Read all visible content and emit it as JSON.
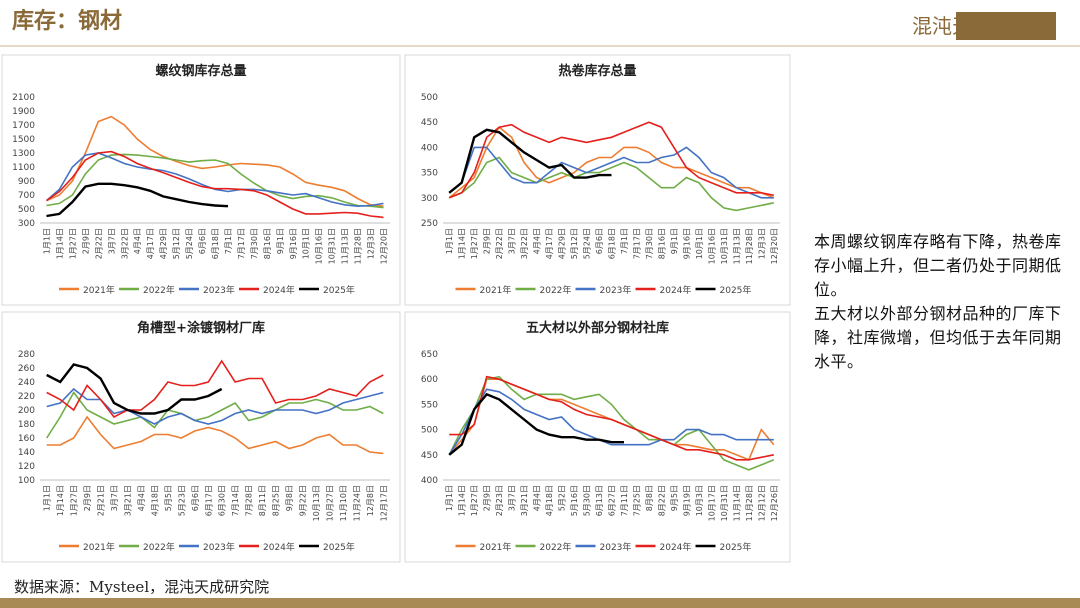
{
  "header": {
    "title": "库存：钢材",
    "logo": "混沌天成研究院"
  },
  "chart_data": [
    {
      "type": "line",
      "title": "螺纹钢库存总量",
      "categories": [
        "1月1日",
        "1月14日",
        "1月27日",
        "2月9日",
        "2月22日",
        "3月7日",
        "3月22日",
        "4月4日",
        "4月17日",
        "4月29日",
        "5月12日",
        "5月24日",
        "6月6日",
        "6月18日",
        "7月1日",
        "7月17日",
        "7月30日",
        "8月16日",
        "9月1日",
        "9月16日",
        "10月1日",
        "10月16日",
        "10月31日",
        "11月13日",
        "11月28日",
        "12月3日",
        "12月20日"
      ],
      "ylim": [
        300,
        2100
      ],
      "yticks": [
        300,
        500,
        700,
        900,
        1100,
        1300,
        1500,
        1700,
        1900,
        2100
      ],
      "grid": false,
      "series": [
        {
          "name": "2021年",
          "color": "#ed7d31",
          "values": [
            620,
            700,
            900,
            1300,
            1750,
            1820,
            1700,
            1500,
            1350,
            1250,
            1180,
            1120,
            1080,
            1100,
            1130,
            1150,
            1140,
            1130,
            1100,
            1000,
            880,
            840,
            810,
            760,
            650,
            560,
            540
          ]
        },
        {
          "name": "2022年",
          "color": "#70ad47",
          "values": [
            550,
            580,
            700,
            1000,
            1200,
            1270,
            1280,
            1270,
            1250,
            1230,
            1200,
            1170,
            1190,
            1200,
            1150,
            1000,
            870,
            760,
            690,
            650,
            680,
            690,
            660,
            600,
            550,
            540,
            520
          ]
        },
        {
          "name": "2023年",
          "color": "#4472c4",
          "values": [
            620,
            780,
            1100,
            1270,
            1300,
            1230,
            1150,
            1100,
            1070,
            1050,
            1000,
            930,
            850,
            780,
            750,
            780,
            780,
            760,
            730,
            700,
            720,
            660,
            600,
            560,
            540,
            550,
            580
          ]
        },
        {
          "name": "2024年",
          "color": "#e3201b",
          "values": [
            620,
            750,
            950,
            1200,
            1300,
            1320,
            1250,
            1150,
            1080,
            1020,
            950,
            880,
            820,
            790,
            790,
            780,
            760,
            700,
            600,
            500,
            430,
            430,
            440,
            450,
            440,
            400,
            380
          ]
        },
        {
          "name": "2025年",
          "color": "#000000",
          "values": [
            400,
            430,
            600,
            820,
            860,
            860,
            840,
            810,
            760,
            680,
            640,
            600,
            570,
            550,
            540,
            null,
            null,
            null,
            null,
            null,
            null,
            null,
            null,
            null,
            null,
            null,
            null
          ]
        }
      ]
    },
    {
      "type": "line",
      "title": "热卷库存总量",
      "categories": [
        "1月1日",
        "1月14日",
        "1月27日",
        "2月9日",
        "2月22日",
        "3月7日",
        "3月22日",
        "4月4日",
        "4月17日",
        "4月29日",
        "5月12日",
        "5月24日",
        "6月6日",
        "6月18日",
        "7月1日",
        "7月17日",
        "7月30日",
        "8月16日",
        "9月1日",
        "9月16日",
        "10月1日",
        "10月16日",
        "10月31日",
        "11月13日",
        "11月28日",
        "12月3日",
        "12月20日"
      ],
      "ylim": [
        250,
        500
      ],
      "yticks": [
        250,
        300,
        350,
        400,
        450,
        500
      ],
      "grid": false,
      "series": [
        {
          "name": "2021年",
          "color": "#ed7d31",
          "values": [
            300,
            320,
            340,
            400,
            440,
            420,
            370,
            340,
            330,
            340,
            350,
            370,
            380,
            380,
            400,
            400,
            390,
            370,
            360,
            360,
            350,
            340,
            330,
            320,
            320,
            310,
            300
          ]
        },
        {
          "name": "2022年",
          "color": "#70ad47",
          "values": [
            300,
            310,
            330,
            370,
            380,
            350,
            340,
            330,
            340,
            350,
            340,
            350,
            350,
            360,
            370,
            360,
            340,
            320,
            320,
            340,
            330,
            300,
            280,
            275,
            280,
            285,
            290
          ]
        },
        {
          "name": "2023年",
          "color": "#4472c4",
          "values": [
            310,
            330,
            400,
            400,
            370,
            340,
            330,
            330,
            350,
            370,
            360,
            350,
            360,
            370,
            380,
            370,
            370,
            380,
            385,
            400,
            380,
            350,
            340,
            320,
            310,
            300,
            300
          ]
        },
        {
          "name": "2024年",
          "color": "#e3201b",
          "values": [
            300,
            310,
            350,
            420,
            440,
            445,
            430,
            420,
            410,
            420,
            415,
            410,
            415,
            420,
            430,
            440,
            450,
            440,
            400,
            360,
            340,
            330,
            320,
            310,
            310,
            310,
            305
          ]
        },
        {
          "name": "2025年",
          "color": "#000000",
          "values": [
            310,
            330,
            420,
            435,
            430,
            410,
            390,
            375,
            360,
            365,
            340,
            340,
            345,
            345,
            null,
            null,
            null,
            null,
            null,
            null,
            null,
            null,
            null,
            null,
            null,
            null,
            null
          ]
        }
      ]
    },
    {
      "type": "line",
      "title": "角槽型+涂镀钢材厂库",
      "categories": [
        "1月1日",
        "1月14日",
        "1月27日",
        "2月9日",
        "2月21日",
        "3月7日",
        "3月21日",
        "4月4日",
        "4月18日",
        "5月5日",
        "5月23日",
        "6月6日",
        "6月17日",
        "6月30日",
        "7月14日",
        "7月28日",
        "8月11日",
        "8月25日",
        "9月8日",
        "9月22日",
        "10月13日",
        "10月27日",
        "11月10日",
        "11月24日",
        "12月8日",
        "12月17日"
      ],
      "ylim": [
        100,
        280
      ],
      "yticks": [
        100,
        120,
        140,
        160,
        180,
        200,
        220,
        240,
        260,
        280
      ],
      "grid": false,
      "series": [
        {
          "name": "2021年",
          "color": "#ed7d31",
          "values": [
            150,
            150,
            160,
            190,
            165,
            145,
            150,
            155,
            165,
            165,
            160,
            170,
            175,
            170,
            160,
            145,
            150,
            155,
            145,
            150,
            160,
            165,
            150,
            150,
            140,
            138
          ]
        },
        {
          "name": "2022年",
          "color": "#70ad47",
          "values": [
            160,
            190,
            225,
            200,
            190,
            180,
            185,
            190,
            175,
            200,
            195,
            185,
            190,
            200,
            210,
            185,
            190,
            200,
            210,
            210,
            215,
            210,
            200,
            200,
            205,
            195
          ]
        },
        {
          "name": "2023年",
          "color": "#4472c4",
          "values": [
            205,
            210,
            230,
            215,
            215,
            195,
            200,
            190,
            180,
            190,
            195,
            185,
            180,
            185,
            195,
            200,
            195,
            200,
            200,
            200,
            195,
            200,
            210,
            215,
            220,
            225
          ]
        },
        {
          "name": "2024年",
          "color": "#e3201b",
          "values": [
            225,
            215,
            200,
            235,
            215,
            190,
            200,
            200,
            215,
            240,
            235,
            235,
            240,
            270,
            240,
            245,
            245,
            210,
            215,
            215,
            220,
            230,
            225,
            220,
            240,
            250
          ]
        },
        {
          "name": "2025年",
          "color": "#000000",
          "values": [
            250,
            240,
            265,
            260,
            245,
            210,
            200,
            195,
            195,
            200,
            215,
            215,
            220,
            230,
            null,
            null,
            null,
            null,
            null,
            null,
            null,
            null,
            null,
            null,
            null,
            null
          ]
        }
      ]
    },
    {
      "type": "line",
      "title": "五大材以外部分钢材社库",
      "categories": [
        "1月1日",
        "1月14日",
        "1月27日",
        "2月9日",
        "2月23日",
        "3月7日",
        "3月21日",
        "4月4日",
        "4月18日",
        "5月2日",
        "5月16日",
        "5月30日",
        "6月13日",
        "6月27日",
        "7月11日",
        "7月25日",
        "8月8日",
        "8月22日",
        "9月5日",
        "9月19日",
        "10月3日",
        "10月17日",
        "10月31日",
        "11月14日",
        "11月28日",
        "12月12日",
        "12月26日"
      ],
      "ylim": [
        400,
        650
      ],
      "yticks": [
        400,
        450,
        500,
        550,
        600,
        650
      ],
      "grid": false,
      "series": [
        {
          "name": "2021年",
          "color": "#ed7d31",
          "values": [
            450,
            480,
            510,
            600,
            600,
            590,
            580,
            570,
            560,
            560,
            550,
            540,
            530,
            520,
            510,
            500,
            490,
            480,
            470,
            470,
            465,
            460,
            460,
            450,
            440,
            500,
            470
          ]
        },
        {
          "name": "2022年",
          "color": "#70ad47",
          "values": [
            450,
            500,
            540,
            600,
            605,
            580,
            560,
            570,
            570,
            570,
            560,
            565,
            570,
            550,
            520,
            500,
            480,
            480,
            470,
            490,
            500,
            470,
            440,
            430,
            420,
            430,
            440
          ]
        },
        {
          "name": "2023年",
          "color": "#4472c4",
          "values": [
            450,
            490,
            540,
            580,
            575,
            560,
            540,
            530,
            520,
            525,
            500,
            490,
            480,
            470,
            470,
            470,
            470,
            480,
            480,
            500,
            500,
            490,
            490,
            480,
            480,
            480,
            480
          ]
        },
        {
          "name": "2024年",
          "color": "#e3201b",
          "values": [
            490,
            490,
            510,
            605,
            600,
            590,
            580,
            570,
            560,
            555,
            540,
            530,
            525,
            520,
            510,
            500,
            490,
            480,
            470,
            460,
            460,
            455,
            450,
            440,
            440,
            445,
            450
          ]
        },
        {
          "name": "2025年",
          "color": "#000000",
          "values": [
            450,
            470,
            540,
            570,
            560,
            540,
            520,
            500,
            490,
            485,
            485,
            480,
            480,
            475,
            475,
            null,
            null,
            null,
            null,
            null,
            null,
            null,
            null,
            null,
            null,
            null,
            null
          ]
        }
      ]
    }
  ],
  "commentary": [
    "本周螺纹钢库存略有下降，热卷库存小幅上升，但二者仍处于同期低位。",
    "五大材以外部分钢材品种的厂库下降，社库微增，但均低于去年同期水平。"
  ],
  "source": "数据来源：Mysteel，混沌天成研究院"
}
